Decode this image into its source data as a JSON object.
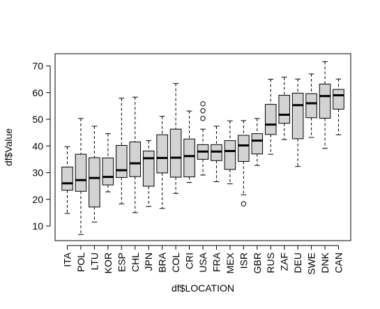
{
  "chart_data": {
    "type": "boxplot",
    "xlabel": "df$LOCATION",
    "ylabel": "df$Value",
    "ylim": [
      4,
      75
    ],
    "yticks": [
      10,
      20,
      30,
      40,
      50,
      60,
      70
    ],
    "box_fill": "#d3d3d3",
    "categories": [
      "ITA",
      "POL",
      "LTU",
      "KOR",
      "ESP",
      "CHL",
      "JPN",
      "BRA",
      "COL",
      "CRI",
      "USA",
      "FRA",
      "MEX",
      "ISR",
      "GBR",
      "RUS",
      "ZAF",
      "DEU",
      "SWE",
      "DNK",
      "CAN"
    ],
    "boxes": [
      {
        "min": 14.7,
        "q1": 23.4,
        "median": 26.0,
        "q3": 32.1,
        "max": 39.7,
        "outliers": []
      },
      {
        "min": 6.8,
        "q1": 23.0,
        "median": 27.2,
        "q3": 36.9,
        "max": 50.3,
        "outliers": []
      },
      {
        "min": 11.5,
        "q1": 17.1,
        "median": 28.0,
        "q3": 35.6,
        "max": 47.4,
        "outliers": []
      },
      {
        "min": 22.8,
        "q1": 25.4,
        "median": 28.4,
        "q3": 35.5,
        "max": 44.6,
        "outliers": []
      },
      {
        "min": 18.3,
        "q1": 28.2,
        "median": 30.9,
        "q3": 40.2,
        "max": 57.9,
        "outliers": []
      },
      {
        "min": 15.0,
        "q1": 28.5,
        "median": 33.5,
        "q3": 41.5,
        "max": 58.3,
        "outliers": []
      },
      {
        "min": 17.3,
        "q1": 24.9,
        "median": 35.4,
        "q3": 38.1,
        "max": 42.0,
        "outliers": []
      },
      {
        "min": 16.6,
        "q1": 29.9,
        "median": 35.5,
        "q3": 44.2,
        "max": 51.1,
        "outliers": []
      },
      {
        "min": 22.2,
        "q1": 28.3,
        "median": 35.6,
        "q3": 46.3,
        "max": 63.4,
        "outliers": []
      },
      {
        "min": 26.3,
        "q1": 28.4,
        "median": 36.2,
        "q3": 42.6,
        "max": 53.1,
        "outliers": []
      },
      {
        "min": 29.1,
        "q1": 35.0,
        "median": 37.9,
        "q3": 40.5,
        "max": 46.3,
        "outliers": [
          50.3,
          53.2,
          55.8
        ]
      },
      {
        "min": 26.6,
        "q1": 34.5,
        "median": 37.9,
        "q3": 40.5,
        "max": 47.4,
        "outliers": []
      },
      {
        "min": 25.8,
        "q1": 31.2,
        "median": 38.1,
        "q3": 42.0,
        "max": 49.4,
        "outliers": []
      },
      {
        "min": 21.7,
        "q1": 34.2,
        "median": 40.2,
        "q3": 44.0,
        "max": 49.5,
        "outliers": [
          18.3
        ]
      },
      {
        "min": 32.7,
        "q1": 37.0,
        "median": 42.0,
        "q3": 44.6,
        "max": 50.3,
        "outliers": []
      },
      {
        "min": 36.9,
        "q1": 44.3,
        "median": 48.0,
        "q3": 55.6,
        "max": 65.0,
        "outliers": []
      },
      {
        "min": 42.4,
        "q1": 48.5,
        "median": 51.7,
        "q3": 59.0,
        "max": 65.8,
        "outliers": []
      },
      {
        "min": 32.3,
        "q1": 42.7,
        "median": 55.3,
        "q3": 59.8,
        "max": 65.1,
        "outliers": []
      },
      {
        "min": 43.2,
        "q1": 50.6,
        "median": 56.0,
        "q3": 59.6,
        "max": 67.0,
        "outliers": []
      },
      {
        "min": 39.1,
        "q1": 50.4,
        "median": 58.7,
        "q3": 63.2,
        "max": 71.6,
        "outliers": []
      },
      {
        "min": 44.2,
        "q1": 53.8,
        "median": 59.0,
        "q3": 61.2,
        "max": 65.1,
        "outliers": []
      }
    ]
  }
}
